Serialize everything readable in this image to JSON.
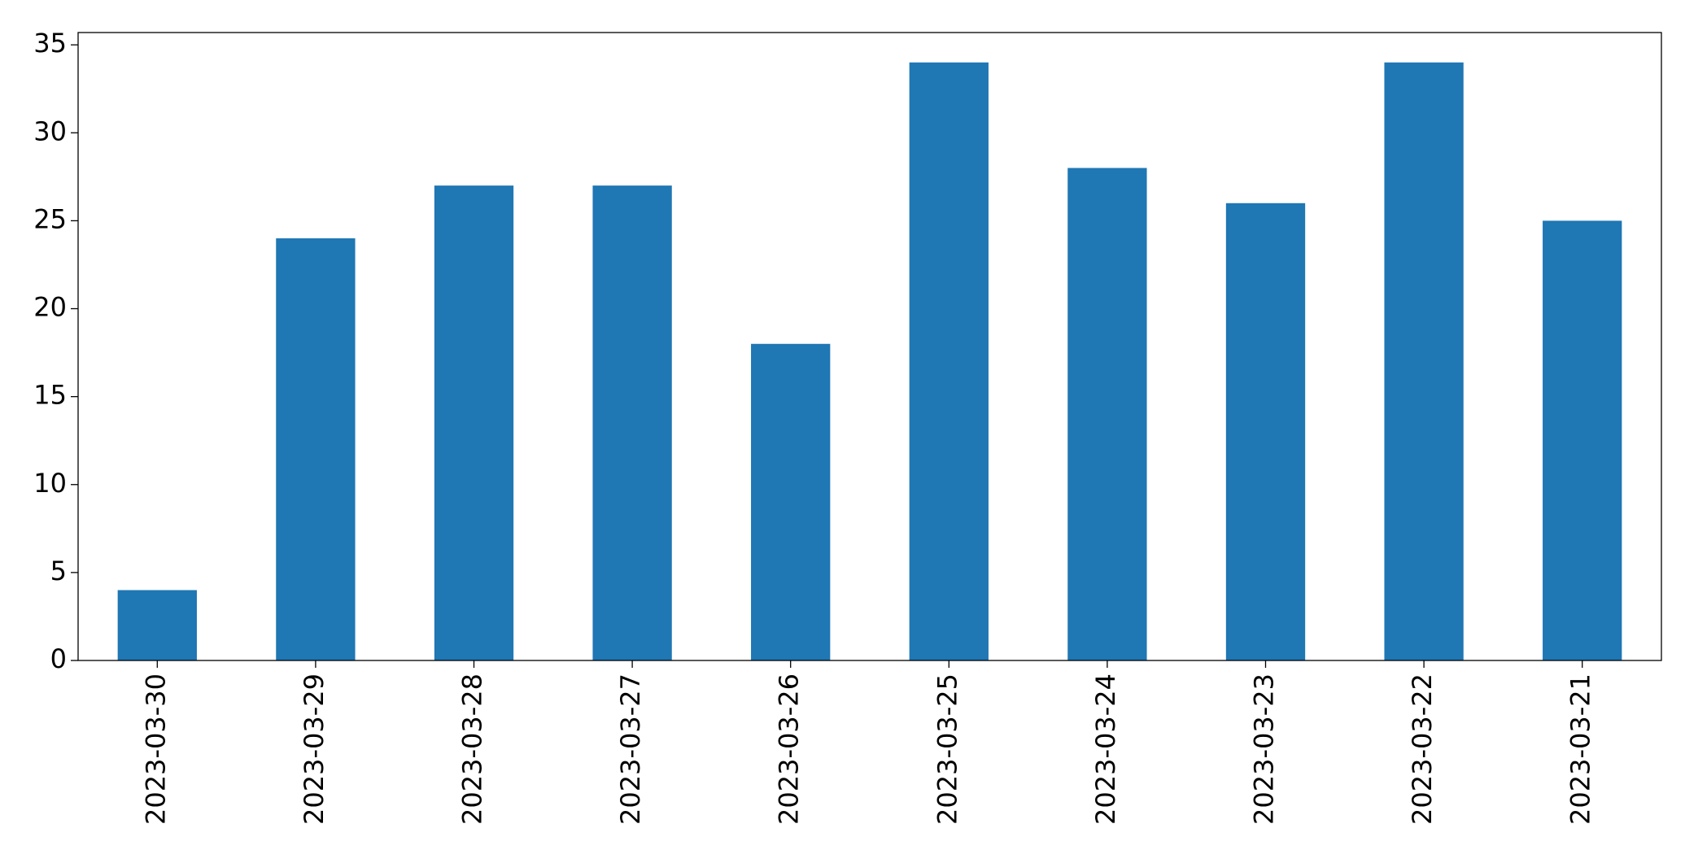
{
  "chart_data": {
    "type": "bar",
    "categories": [
      "2023-03-30",
      "2023-03-29",
      "2023-03-28",
      "2023-03-27",
      "2023-03-26",
      "2023-03-25",
      "2023-03-24",
      "2023-03-23",
      "2023-03-22",
      "2023-03-21"
    ],
    "values": [
      4,
      24,
      27,
      27,
      18,
      34,
      28,
      26,
      34,
      25
    ],
    "color": "#1f77b4",
    "ylim": [
      0,
      35.7
    ],
    "yticks": [
      0,
      5,
      10,
      15,
      20,
      25,
      30,
      35
    ],
    "grid": false
  }
}
